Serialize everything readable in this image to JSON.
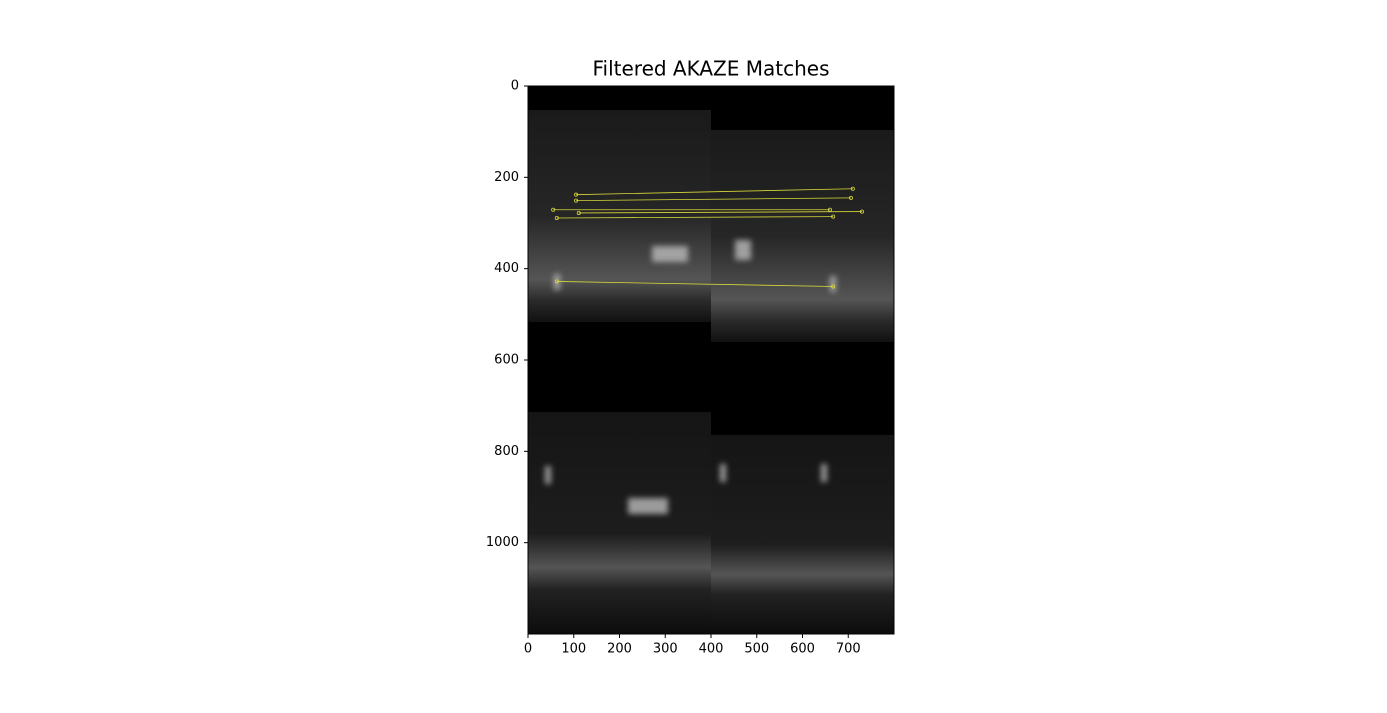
{
  "chart_data": {
    "type": "image-matches",
    "title": "Filtered AKAZE Matches",
    "xlim": [
      0,
      800
    ],
    "ylim": [
      1200,
      0
    ],
    "xticks": [
      0,
      100,
      200,
      300,
      400,
      500,
      600,
      700
    ],
    "yticks": [
      0,
      200,
      400,
      600,
      800,
      1000
    ],
    "color": "#d8d83a",
    "matches": [
      {
        "x": [
          105,
          710
        ],
        "y": [
          238,
          225
        ]
      },
      {
        "x": [
          105,
          706
        ],
        "y": [
          251,
          245
        ]
      },
      {
        "x": [
          55,
          660
        ],
        "y": [
          271,
          271
        ]
      },
      {
        "x": [
          111,
          730
        ],
        "y": [
          278,
          275
        ]
      },
      {
        "x": [
          63,
          667
        ],
        "y": [
          289,
          286
        ]
      },
      {
        "x": [
          63,
          667
        ],
        "y": [
          428,
          439
        ]
      }
    ]
  }
}
